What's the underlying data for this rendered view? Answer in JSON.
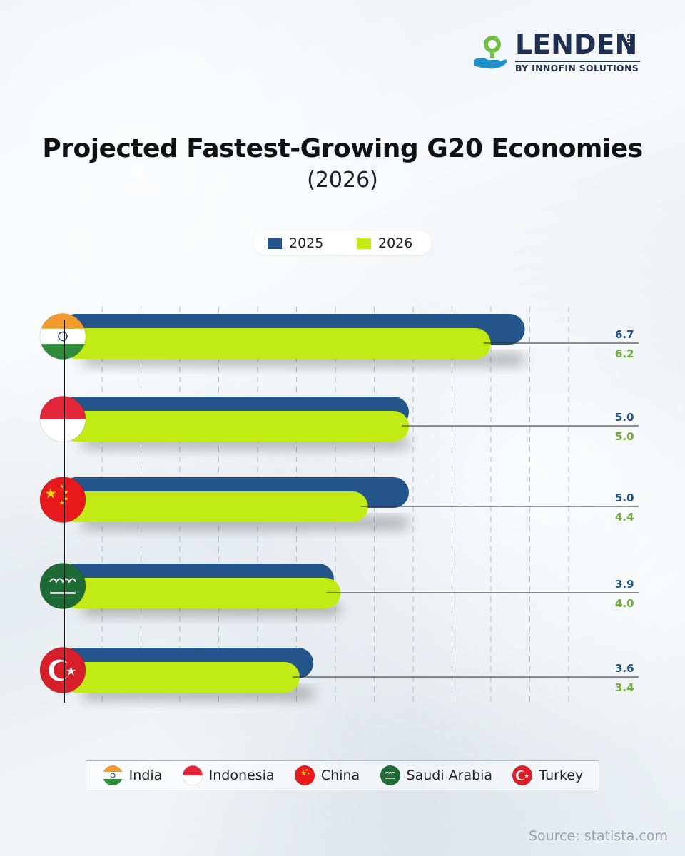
{
  "brand": {
    "name": "LENDEN",
    "suffix": "club",
    "tagline": "BY INNOFIN SOLUTIONS",
    "navy": "#1d2f52",
    "green": "#6cbf44",
    "blue": "#1e90c8"
  },
  "title": "Projected Fastest-Growing G20 Economies",
  "subtitle": "(2026)",
  "chart_data": {
    "type": "bar",
    "orientation": "horizontal",
    "title": "Projected Fastest-Growing G20 Economies (2026)",
    "categories": [
      "India",
      "Indonesia",
      "China",
      "Saudi Arabia",
      "Turkey"
    ],
    "series": [
      {
        "name": "2025",
        "color": "#24558b",
        "label_color": "#24558b",
        "values": [
          6.7,
          5.0,
          5.0,
          3.9,
          3.6
        ]
      },
      {
        "name": "2026",
        "color": "#c2ea14",
        "label_color": "#6fae3c",
        "values": [
          6.2,
          5.0,
          4.4,
          4.0,
          3.4
        ]
      }
    ],
    "xlim": [
      0,
      7.5
    ],
    "grid": true,
    "gridlines_every": 0.5,
    "legend_position": "top-center",
    "value_labels_format": "0.0"
  },
  "legend_countries": [
    {
      "name": "India",
      "flag": "india-flag-icon"
    },
    {
      "name": "Indonesia",
      "flag": "indonesia-flag-icon"
    },
    {
      "name": "China",
      "flag": "china-flag-icon"
    },
    {
      "name": "Saudi Arabia",
      "flag": "saudi-arabia-flag-icon"
    },
    {
      "name": "Turkey",
      "flag": "turkey-flag-icon"
    }
  ],
  "source": "Source: statista.com"
}
